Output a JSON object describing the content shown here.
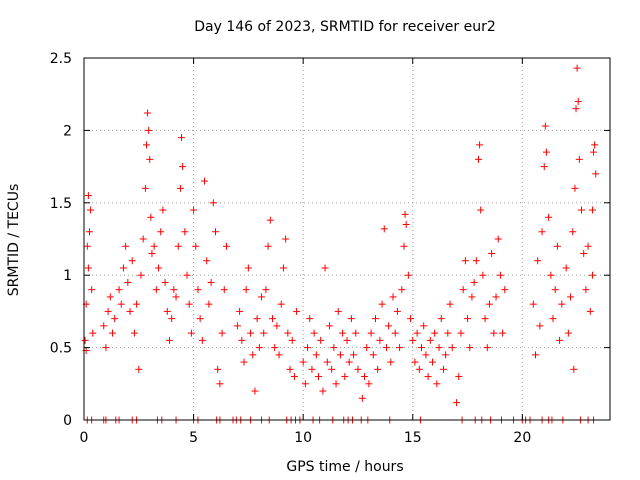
{
  "colors": {
    "series": "#ff0000",
    "grid": "#a0a0a0",
    "axis": "#000000"
  },
  "chart_data": {
    "type": "scatter",
    "title": "Day 146 of 2023, SRMTID for receiver eur2",
    "xlabel": "GPS time / hours",
    "ylabel": "SRMTID / TECUs",
    "xlim": [
      0,
      24
    ],
    "ylim": [
      0,
      2.5
    ],
    "xticks": [
      0,
      5,
      10,
      15,
      20
    ],
    "yticks": [
      0,
      0.5,
      1,
      1.5,
      2,
      2.5
    ],
    "xtick_labels": [
      "0",
      "5",
      "10",
      "15",
      "20"
    ],
    "ytick_labels": [
      "0",
      "0.5",
      "1",
      "1.5",
      "2",
      "2.5"
    ],
    "grid": true,
    "marker": "+",
    "series": [
      {
        "name": "SRMTID",
        "points": [
          [
            0.05,
            0.55
          ],
          [
            0.1,
            0.8
          ],
          [
            0.15,
            1.2
          ],
          [
            0.2,
            1.55
          ],
          [
            0.25,
            1.3
          ],
          [
            0.3,
            1.45
          ],
          [
            0.35,
            0.9
          ],
          [
            0.4,
            0.6
          ],
          [
            0.1,
            0.48
          ],
          [
            0.2,
            1.05
          ],
          [
            0.9,
            0.65
          ],
          [
            1.0,
            0.5
          ],
          [
            1.1,
            0.75
          ],
          [
            1.2,
            0.85
          ],
          [
            1.3,
            0.6
          ],
          [
            1.4,
            0.7
          ],
          [
            1.6,
            0.9
          ],
          [
            1.7,
            0.8
          ],
          [
            1.8,
            1.05
          ],
          [
            1.9,
            1.2
          ],
          [
            2.0,
            0.95
          ],
          [
            2.1,
            0.75
          ],
          [
            2.2,
            1.1
          ],
          [
            2.3,
            0.6
          ],
          [
            2.4,
            0.8
          ],
          [
            2.5,
            0.35
          ],
          [
            2.6,
            1.0
          ],
          [
            2.7,
            1.25
          ],
          [
            2.8,
            1.6
          ],
          [
            2.85,
            1.9
          ],
          [
            2.9,
            2.12
          ],
          [
            2.95,
            2.0
          ],
          [
            3.0,
            1.8
          ],
          [
            3.05,
            1.4
          ],
          [
            3.1,
            1.15
          ],
          [
            3.2,
            1.2
          ],
          [
            3.3,
            0.9
          ],
          [
            3.4,
            1.05
          ],
          [
            3.5,
            1.3
          ],
          [
            3.6,
            1.45
          ],
          [
            3.7,
            0.95
          ],
          [
            3.8,
            0.75
          ],
          [
            3.9,
            0.55
          ],
          [
            4.0,
            0.7
          ],
          [
            4.1,
            0.9
          ],
          [
            4.2,
            0.85
          ],
          [
            4.3,
            1.2
          ],
          [
            4.4,
            1.6
          ],
          [
            4.45,
            1.95
          ],
          [
            4.5,
            1.75
          ],
          [
            4.6,
            1.3
          ],
          [
            4.7,
            1.0
          ],
          [
            4.8,
            0.8
          ],
          [
            4.9,
            0.6
          ],
          [
            5.0,
            1.45
          ],
          [
            5.1,
            1.2
          ],
          [
            5.2,
            0.9
          ],
          [
            5.3,
            0.7
          ],
          [
            5.4,
            0.55
          ],
          [
            5.5,
            1.65
          ],
          [
            5.6,
            1.1
          ],
          [
            5.7,
            0.8
          ],
          [
            5.8,
            0.95
          ],
          [
            5.9,
            1.5
          ],
          [
            6.0,
            1.3
          ],
          [
            6.1,
            0.35
          ],
          [
            6.2,
            0.25
          ],
          [
            6.3,
            0.6
          ],
          [
            6.4,
            0.9
          ],
          [
            6.5,
            1.2
          ],
          [
            7.0,
            0.65
          ],
          [
            7.1,
            0.75
          ],
          [
            7.2,
            0.55
          ],
          [
            7.3,
            0.4
          ],
          [
            7.4,
            0.9
          ],
          [
            7.5,
            1.05
          ],
          [
            7.6,
            0.6
          ],
          [
            7.7,
            0.45
          ],
          [
            7.8,
            0.2
          ],
          [
            7.9,
            0.7
          ],
          [
            8.0,
            0.5
          ],
          [
            8.1,
            0.85
          ],
          [
            8.2,
            0.6
          ],
          [
            8.3,
            0.9
          ],
          [
            8.4,
            1.2
          ],
          [
            8.5,
            1.38
          ],
          [
            8.6,
            0.7
          ],
          [
            8.7,
            0.5
          ],
          [
            8.8,
            0.65
          ],
          [
            8.9,
            0.45
          ],
          [
            9.0,
            0.8
          ],
          [
            9.1,
            1.05
          ],
          [
            9.2,
            1.25
          ],
          [
            9.3,
            0.6
          ],
          [
            9.4,
            0.35
          ],
          [
            9.5,
            0.55
          ],
          [
            9.6,
            0.3
          ],
          [
            9.7,
            0.75
          ],
          [
            10.0,
            0.4
          ],
          [
            10.1,
            0.25
          ],
          [
            10.2,
            0.5
          ],
          [
            10.3,
            0.7
          ],
          [
            10.4,
            0.35
          ],
          [
            10.5,
            0.6
          ],
          [
            10.6,
            0.45
          ],
          [
            10.7,
            0.3
          ],
          [
            10.8,
            0.55
          ],
          [
            10.9,
            0.2
          ],
          [
            11.0,
            1.05
          ],
          [
            11.1,
            0.4
          ],
          [
            11.2,
            0.65
          ],
          [
            11.3,
            0.35
          ],
          [
            11.4,
            0.5
          ],
          [
            11.5,
            0.25
          ],
          [
            11.6,
            0.75
          ],
          [
            11.7,
            0.45
          ],
          [
            11.8,
            0.6
          ],
          [
            11.9,
            0.3
          ],
          [
            12.0,
            0.55
          ],
          [
            12.1,
            0.4
          ],
          [
            12.2,
            0.7
          ],
          [
            12.3,
            0.45
          ],
          [
            12.4,
            0.6
          ],
          [
            12.5,
            0.35
          ],
          [
            12.7,
            0.15
          ],
          [
            12.8,
            0.3
          ],
          [
            12.9,
            0.5
          ],
          [
            13.0,
            0.25
          ],
          [
            13.1,
            0.6
          ],
          [
            13.2,
            0.45
          ],
          [
            13.3,
            0.7
          ],
          [
            13.4,
            0.35
          ],
          [
            13.5,
            0.55
          ],
          [
            13.6,
            0.8
          ],
          [
            13.7,
            1.32
          ],
          [
            13.8,
            0.5
          ],
          [
            13.9,
            0.65
          ],
          [
            14.0,
            0.4
          ],
          [
            14.1,
            0.85
          ],
          [
            14.2,
            0.6
          ],
          [
            14.3,
            0.75
          ],
          [
            14.4,
            0.5
          ],
          [
            14.5,
            0.9
          ],
          [
            14.6,
            1.2
          ],
          [
            14.65,
            1.42
          ],
          [
            14.7,
            1.35
          ],
          [
            14.8,
            1.0
          ],
          [
            14.9,
            0.7
          ],
          [
            15.0,
            0.55
          ],
          [
            15.1,
            0.4
          ],
          [
            15.2,
            0.6
          ],
          [
            15.3,
            0.35
          ],
          [
            15.4,
            0.5
          ],
          [
            15.5,
            0.65
          ],
          [
            15.6,
            0.45
          ],
          [
            15.7,
            0.3
          ],
          [
            15.8,
            0.55
          ],
          [
            15.9,
            0.4
          ],
          [
            16.0,
            0.6
          ],
          [
            16.1,
            0.25
          ],
          [
            16.2,
            0.5
          ],
          [
            16.3,
            0.7
          ],
          [
            16.4,
            0.35
          ],
          [
            16.5,
            0.45
          ],
          [
            16.6,
            0.6
          ],
          [
            16.7,
            0.8
          ],
          [
            16.8,
            0.5
          ],
          [
            17.0,
            0.12
          ],
          [
            17.1,
            0.3
          ],
          [
            17.2,
            0.6
          ],
          [
            17.3,
            0.9
          ],
          [
            17.4,
            1.1
          ],
          [
            17.5,
            0.7
          ],
          [
            17.6,
            0.5
          ],
          [
            17.7,
            0.85
          ],
          [
            17.8,
            0.95
          ],
          [
            17.9,
            1.1
          ],
          [
            18.0,
            1.8
          ],
          [
            18.05,
            1.9
          ],
          [
            18.1,
            1.45
          ],
          [
            18.2,
            1.0
          ],
          [
            18.3,
            0.7
          ],
          [
            18.4,
            0.5
          ],
          [
            18.5,
            0.8
          ],
          [
            18.6,
            1.15
          ],
          [
            18.7,
            0.6
          ],
          [
            18.8,
            0.85
          ],
          [
            18.9,
            1.25
          ],
          [
            19.0,
            1.0
          ],
          [
            19.1,
            0.6
          ],
          [
            19.2,
            0.9
          ],
          [
            20.5,
            0.8
          ],
          [
            20.6,
            0.45
          ],
          [
            20.7,
            1.1
          ],
          [
            20.8,
            0.65
          ],
          [
            20.9,
            1.3
          ],
          [
            21.0,
            1.75
          ],
          [
            21.05,
            2.03
          ],
          [
            21.1,
            1.85
          ],
          [
            21.2,
            1.4
          ],
          [
            21.3,
            1.0
          ],
          [
            21.4,
            0.7
          ],
          [
            21.5,
            0.9
          ],
          [
            21.6,
            1.2
          ],
          [
            21.7,
            0.55
          ],
          [
            21.8,
            0.8
          ],
          [
            22.0,
            1.05
          ],
          [
            22.1,
            0.6
          ],
          [
            22.2,
            0.85
          ],
          [
            22.3,
            1.3
          ],
          [
            22.4,
            1.6
          ],
          [
            22.45,
            2.15
          ],
          [
            22.5,
            2.43
          ],
          [
            22.55,
            2.2
          ],
          [
            22.6,
            1.8
          ],
          [
            22.7,
            1.45
          ],
          [
            22.8,
            1.15
          ],
          [
            22.9,
            0.9
          ],
          [
            23.0,
            1.2
          ],
          [
            23.1,
            0.75
          ],
          [
            23.2,
            1.0
          ],
          [
            22.35,
            0.35
          ],
          [
            23.25,
            1.85
          ],
          [
            23.3,
            1.9
          ],
          [
            23.35,
            1.7
          ],
          [
            23.2,
            1.45
          ]
        ],
        "zero_points": [
          0.15,
          0.35,
          0.9,
          1.0,
          1.45,
          1.6,
          2.2,
          2.4,
          3.35,
          3.55,
          4.2,
          5.0,
          5.2,
          6.05,
          6.2,
          6.8,
          6.95,
          7.15,
          7.6,
          8.1,
          8.45,
          9.25,
          9.45,
          9.65,
          9.85,
          10.45,
          10.75,
          11.35,
          11.85,
          12.05,
          12.25,
          12.65,
          12.95,
          13.95,
          15.35,
          17.25,
          17.85,
          18.15,
          18.55,
          19.05,
          19.6,
          20.0,
          20.15,
          20.35,
          20.9,
          21.2,
          21.35,
          21.85,
          22.65,
          23.0,
          23.25
        ]
      }
    ]
  }
}
